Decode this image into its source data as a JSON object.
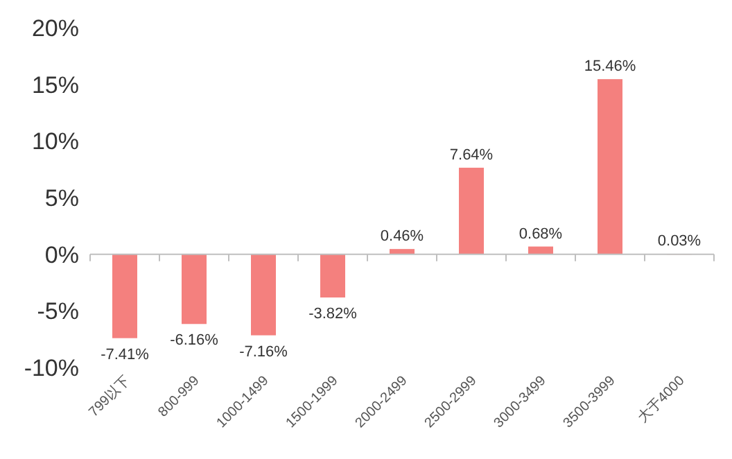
{
  "chart_data": {
    "type": "bar",
    "categories": [
      "799以下",
      "800-999",
      "1000-1499",
      "1500-1999",
      "2000-2499",
      "2500-2999",
      "3000-3499",
      "3500-3999",
      "大于4000"
    ],
    "values": [
      -7.41,
      -6.16,
      -7.16,
      -3.82,
      0.46,
      7.64,
      0.68,
      15.46,
      0.03
    ],
    "value_labels": [
      "-7.41%",
      "-6.16%",
      "-7.16%",
      "-3.82%",
      "0.46%",
      "7.64%",
      "0.68%",
      "15.46%",
      "0.03%"
    ],
    "color": "#f4807e",
    "ylim": [
      -10,
      20
    ],
    "yticks": [
      {
        "value": -10,
        "label": "-10%"
      },
      {
        "value": -5,
        "label": "-5%"
      },
      {
        "value": 0,
        "label": "0%"
      },
      {
        "value": 5,
        "label": "5%"
      },
      {
        "value": 10,
        "label": "10%"
      },
      {
        "value": 15,
        "label": "15%"
      },
      {
        "value": 20,
        "label": "20%"
      }
    ]
  }
}
